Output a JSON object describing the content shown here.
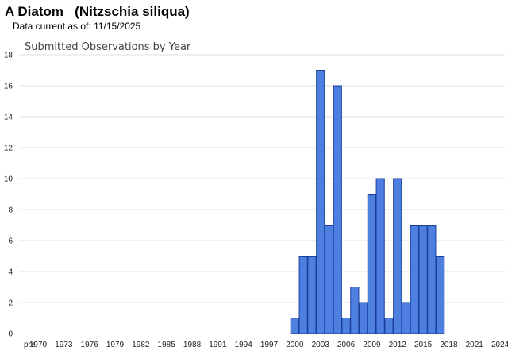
{
  "header": {
    "common_name": "A Diatom",
    "scientific_name": "(Nitzschia siliqua)",
    "data_current_label": "Data current as of:",
    "data_current_date": "11/15/2025"
  },
  "chart_data": {
    "type": "bar",
    "title": "Submitted Observations by Year",
    "xlabel": "",
    "ylabel": "",
    "ylim": [
      0,
      18
    ],
    "yticks": [
      0,
      2,
      4,
      6,
      8,
      10,
      12,
      14,
      16,
      18
    ],
    "grid": true,
    "legend": "none",
    "bar_color": "#4c7fe0",
    "bar_edge_color": "#1a3f99",
    "categories": [
      "pre",
      "1970",
      "1971",
      "1972",
      "1973",
      "1974",
      "1975",
      "1976",
      "1977",
      "1978",
      "1979",
      "1980",
      "1981",
      "1982",
      "1983",
      "1984",
      "1985",
      "1986",
      "1987",
      "1988",
      "1989",
      "1990",
      "1991",
      "1992",
      "1993",
      "1994",
      "1995",
      "1996",
      "1997",
      "1998",
      "1999",
      "2000",
      "2001",
      "2002",
      "2003",
      "2004",
      "2005",
      "2006",
      "2007",
      "2008",
      "2009",
      "2010",
      "2011",
      "2012",
      "2013",
      "2014",
      "2015",
      "2016",
      "2017",
      "2018",
      "2019",
      "2020",
      "2021",
      "2022",
      "2023",
      "2024",
      "2025"
    ],
    "values": [
      0,
      0,
      0,
      0,
      0,
      0,
      0,
      0,
      0,
      0,
      0,
      0,
      0,
      0,
      0,
      0,
      0,
      0,
      0,
      0,
      0,
      0,
      0,
      0,
      0,
      0,
      0,
      0,
      0,
      0,
      0,
      1,
      5,
      5,
      17,
      7,
      16,
      1,
      3,
      2,
      9,
      10,
      1,
      10,
      2,
      7,
      7,
      7,
      5,
      0,
      0,
      0,
      0,
      0,
      0,
      0,
      0
    ],
    "x_tick_labels": [
      "pre",
      "1970",
      "1973",
      "1976",
      "1979",
      "1982",
      "1985",
      "1988",
      "1991",
      "1994",
      "1997",
      "2000",
      "2003",
      "2006",
      "2009",
      "2012",
      "2015",
      "2018",
      "2021",
      "2024"
    ]
  }
}
